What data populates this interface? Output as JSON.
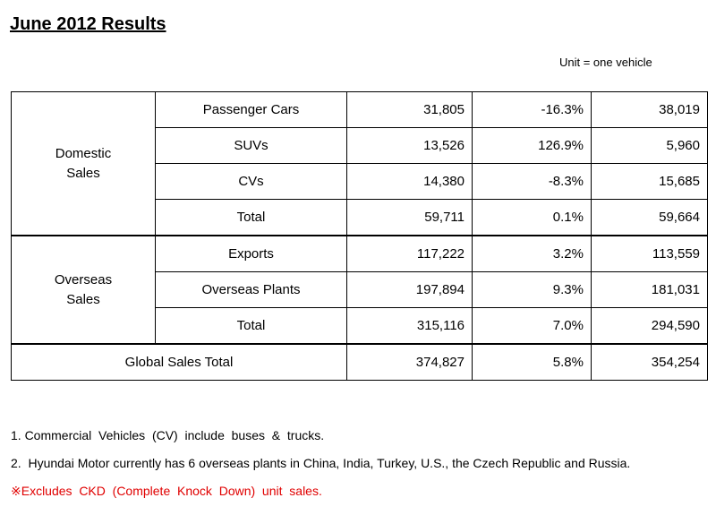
{
  "title": "June 2012 Results",
  "unit": "Unit = one vehicle",
  "domestic": {
    "label_line1": "Domestic",
    "label_line2": "Sales",
    "rows": [
      {
        "category": "Passenger Cars",
        "col1": "31,805",
        "col2": "-16.3%",
        "col3": "38,019"
      },
      {
        "category": "SUVs",
        "col1": "13,526",
        "col2": "126.9%",
        "col3": "5,960"
      },
      {
        "category": "CVs",
        "col1": "14,380",
        "col2": "-8.3%",
        "col3": "15,685"
      },
      {
        "category": "Total",
        "col1": "59,711",
        "col2": "0.1%",
        "col3": "59,664"
      }
    ]
  },
  "overseas": {
    "label_line1": "Overseas",
    "label_line2": "Sales",
    "rows": [
      {
        "category": "Exports",
        "col1": "117,222",
        "col2": "3.2%",
        "col3": "113,559"
      },
      {
        "category": "Overseas Plants",
        "col1": "197,894",
        "col2": "9.3%",
        "col3": "181,031"
      },
      {
        "category": "Total",
        "col1": "315,116",
        "col2": "7.0%",
        "col3": "294,590"
      }
    ]
  },
  "global": {
    "label": "Global Sales Total",
    "col1": "374,827",
    "col2": "5.8%",
    "col3": "354,254"
  },
  "notes": [
    "1. Commercial  Vehicles  (CV)  include  buses  &  trucks.",
    "2.  Hyundai Motor currently has 6 overseas plants in China, India, Turkey, U.S., the Czech Republic and Russia.",
    "※Excludes  CKD  (Complete  Knock  Down)  unit  sales."
  ],
  "colors": {
    "note_highlight": "#e00000"
  }
}
